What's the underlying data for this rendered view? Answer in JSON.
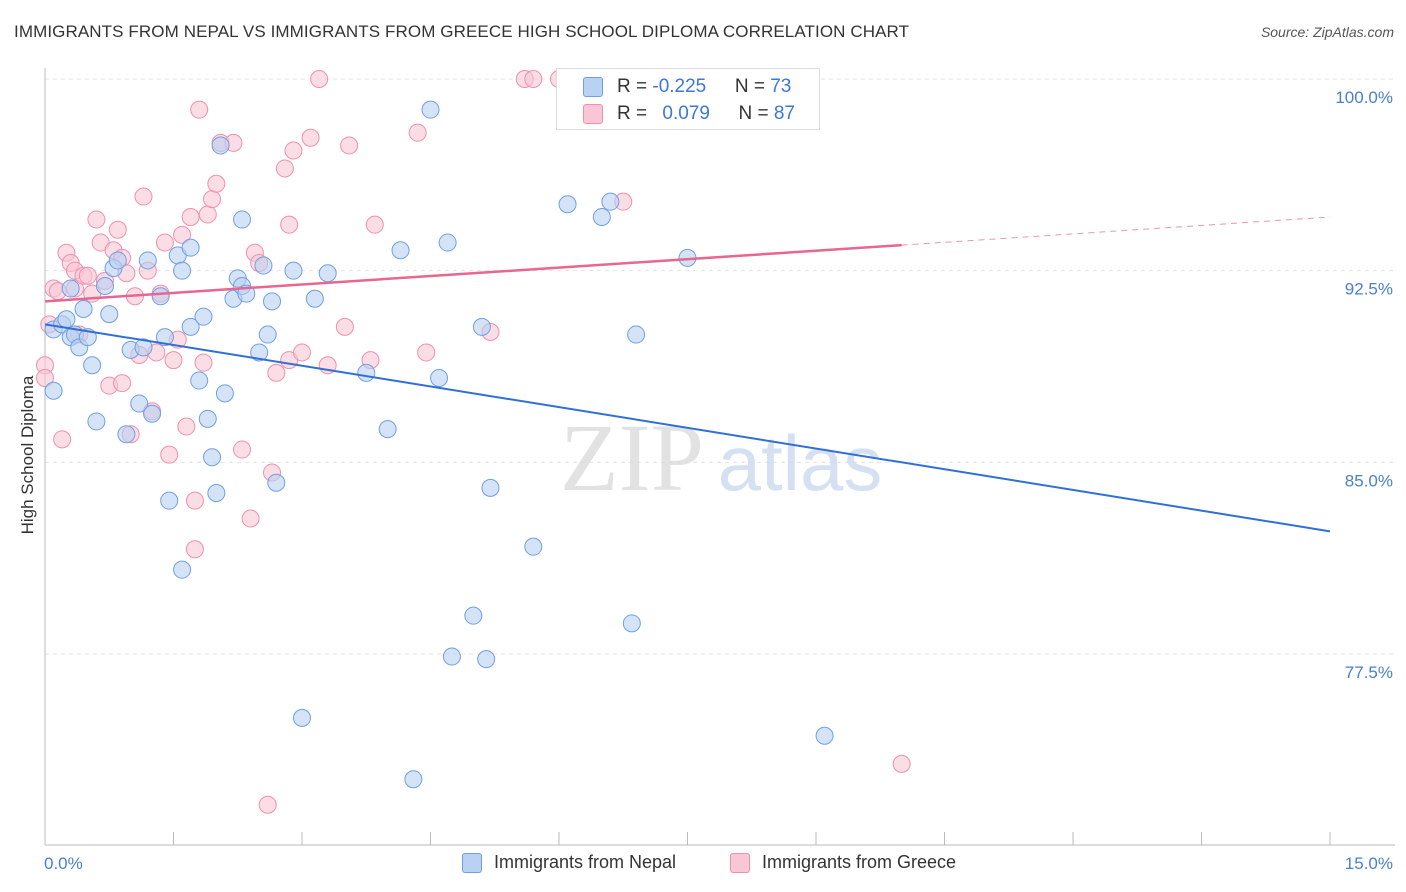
{
  "header": {
    "title": "IMMIGRANTS FROM NEPAL VS IMMIGRANTS FROM GREECE HIGH SCHOOL DIPLOMA CORRELATION CHART",
    "source": "Source: ZipAtlas.com"
  },
  "watermark": {
    "zip": "ZIP",
    "atlas": "atlas"
  },
  "legend": {
    "rows": [
      {
        "r_label": "R = ",
        "r_value": "-0.225",
        "n_label": "N = ",
        "n_value": "73",
        "color": "#6fa0e4"
      },
      {
        "r_label": "R = ",
        "r_value": "0.079",
        "n_label": "N = ",
        "n_value": "87",
        "color": "#f090ad"
      }
    ]
  },
  "bottom_legend": {
    "nepal": "Immigrants from Nepal",
    "greece": "Immigrants from Greece"
  },
  "chart_data": {
    "type": "scatter",
    "title": "IMMIGRANTS FROM NEPAL VS IMMIGRANTS FROM GREECE HIGH SCHOOL DIPLOMA CORRELATION CHART",
    "xlabel": "",
    "ylabel": "High School Diploma",
    "xlim": [
      0,
      15
    ],
    "ylim": [
      71,
      101
    ],
    "x_tick_labels": [
      "0.0%",
      "15.0%"
    ],
    "y_ticks": [
      77.5,
      85.0,
      92.5,
      100.0
    ],
    "y_tick_labels": [
      "77.5%",
      "85.0%",
      "92.5%",
      "100.0%"
    ],
    "grid": true,
    "series": [
      {
        "name": "Immigrants from Nepal",
        "color": "#6fa0e4",
        "fill": "#b9d1f2",
        "trend": {
          "x0": 0.0,
          "y0": 90.4,
          "x1": 15.0,
          "y1": 82.3,
          "style": "solid"
        },
        "points": [
          [
            0.1,
            90.2
          ],
          [
            0.1,
            87.8
          ],
          [
            0.2,
            90.4
          ],
          [
            0.25,
            90.6
          ],
          [
            0.3,
            89.9
          ],
          [
            0.3,
            91.8
          ],
          [
            0.35,
            90.0
          ],
          [
            0.4,
            89.5
          ],
          [
            0.45,
            91.0
          ],
          [
            0.5,
            89.9
          ],
          [
            0.55,
            88.8
          ],
          [
            0.6,
            86.6
          ],
          [
            0.7,
            91.9
          ],
          [
            0.75,
            90.8
          ],
          [
            0.8,
            92.6
          ],
          [
            0.85,
            92.9
          ],
          [
            0.95,
            86.1
          ],
          [
            1.0,
            89.4
          ],
          [
            1.1,
            87.3
          ],
          [
            1.15,
            89.5
          ],
          [
            1.2,
            92.9
          ],
          [
            1.25,
            86.9
          ],
          [
            1.35,
            91.5
          ],
          [
            1.4,
            89.9
          ],
          [
            1.45,
            83.5
          ],
          [
            1.55,
            93.1
          ],
          [
            1.6,
            80.8
          ],
          [
            1.6,
            92.5
          ],
          [
            1.7,
            93.4
          ],
          [
            1.7,
            90.3
          ],
          [
            1.8,
            88.2
          ],
          [
            1.85,
            90.7
          ],
          [
            1.9,
            86.7
          ],
          [
            1.95,
            85.2
          ],
          [
            2.0,
            83.8
          ],
          [
            2.05,
            97.4
          ],
          [
            2.1,
            87.7
          ],
          [
            2.2,
            91.4
          ],
          [
            2.25,
            92.2
          ],
          [
            2.3,
            91.9
          ],
          [
            2.3,
            94.5
          ],
          [
            2.35,
            91.6
          ],
          [
            2.5,
            89.3
          ],
          [
            2.55,
            92.7
          ],
          [
            2.6,
            90.0
          ],
          [
            2.65,
            91.3
          ],
          [
            2.7,
            84.2
          ],
          [
            2.9,
            92.5
          ],
          [
            3.0,
            75.0
          ],
          [
            3.15,
            91.4
          ],
          [
            3.3,
            92.4
          ],
          [
            3.75,
            88.5
          ],
          [
            4.0,
            86.3
          ],
          [
            4.15,
            93.3
          ],
          [
            4.3,
            72.6
          ],
          [
            4.5,
            98.8
          ],
          [
            4.6,
            88.3
          ],
          [
            4.7,
            93.6
          ],
          [
            4.75,
            77.4
          ],
          [
            5.0,
            79.0
          ],
          [
            5.1,
            90.3
          ],
          [
            5.15,
            77.3
          ],
          [
            5.2,
            84.0
          ],
          [
            5.7,
            81.7
          ],
          [
            6.1,
            95.1
          ],
          [
            6.5,
            94.6
          ],
          [
            6.6,
            95.2
          ],
          [
            6.85,
            78.7
          ],
          [
            6.9,
            90.0
          ],
          [
            7.5,
            93.0
          ],
          [
            9.1,
            74.3
          ]
        ]
      },
      {
        "name": "Immigrants from Greece",
        "color": "#f090ad",
        "fill": "#f9c6d5",
        "trend": {
          "x0": 0.0,
          "y0": 91.3,
          "x1": 10.0,
          "y1": 93.5,
          "style": "solid",
          "dashed_to": [
            15.0,
            94.6
          ]
        },
        "points": [
          [
            0.0,
            88.8
          ],
          [
            0.0,
            88.3
          ],
          [
            0.05,
            90.4
          ],
          [
            0.1,
            91.8
          ],
          [
            0.15,
            91.7
          ],
          [
            0.2,
            85.9
          ],
          [
            0.25,
            93.2
          ],
          [
            0.3,
            92.8
          ],
          [
            0.35,
            92.5
          ],
          [
            0.35,
            91.8
          ],
          [
            0.4,
            90.0
          ],
          [
            0.45,
            92.3
          ],
          [
            0.5,
            92.3
          ],
          [
            0.55,
            91.6
          ],
          [
            0.6,
            94.5
          ],
          [
            0.65,
            93.6
          ],
          [
            0.7,
            92.1
          ],
          [
            0.75,
            88.0
          ],
          [
            0.8,
            93.3
          ],
          [
            0.85,
            94.1
          ],
          [
            0.9,
            93.0
          ],
          [
            0.9,
            88.1
          ],
          [
            0.95,
            92.4
          ],
          [
            1.0,
            86.1
          ],
          [
            1.05,
            91.5
          ],
          [
            1.1,
            89.2
          ],
          [
            1.15,
            95.4
          ],
          [
            1.2,
            92.5
          ],
          [
            1.25,
            87.0
          ],
          [
            1.3,
            89.3
          ],
          [
            1.35,
            91.6
          ],
          [
            1.4,
            93.6
          ],
          [
            1.45,
            85.3
          ],
          [
            1.5,
            89.0
          ],
          [
            1.55,
            89.8
          ],
          [
            1.6,
            93.9
          ],
          [
            1.65,
            86.4
          ],
          [
            1.7,
            94.6
          ],
          [
            1.75,
            81.6
          ],
          [
            1.75,
            83.5
          ],
          [
            1.8,
            98.8
          ],
          [
            1.85,
            88.9
          ],
          [
            1.9,
            94.7
          ],
          [
            1.95,
            95.3
          ],
          [
            2.0,
            95.9
          ],
          [
            2.05,
            97.5
          ],
          [
            2.2,
            97.5
          ],
          [
            2.3,
            85.5
          ],
          [
            2.4,
            82.8
          ],
          [
            2.45,
            93.2
          ],
          [
            2.5,
            92.8
          ],
          [
            2.6,
            71.6
          ],
          [
            2.65,
            84.6
          ],
          [
            2.7,
            88.5
          ],
          [
            2.8,
            96.5
          ],
          [
            2.85,
            94.3
          ],
          [
            2.85,
            89.0
          ],
          [
            2.9,
            97.2
          ],
          [
            3.0,
            89.3
          ],
          [
            3.1,
            97.7
          ],
          [
            3.2,
            100.0
          ],
          [
            3.3,
            88.8
          ],
          [
            3.5,
            90.3
          ],
          [
            3.55,
            97.4
          ],
          [
            3.8,
            89.0
          ],
          [
            3.85,
            94.3
          ],
          [
            4.35,
            97.9
          ],
          [
            4.45,
            89.3
          ],
          [
            5.2,
            90.1
          ],
          [
            5.6,
            100.0
          ],
          [
            5.7,
            100.0
          ],
          [
            6.0,
            100.0
          ],
          [
            6.1,
            99.9
          ],
          [
            6.6,
            100.0
          ],
          [
            6.75,
            95.2
          ],
          [
            10.0,
            73.2
          ]
        ]
      }
    ]
  }
}
